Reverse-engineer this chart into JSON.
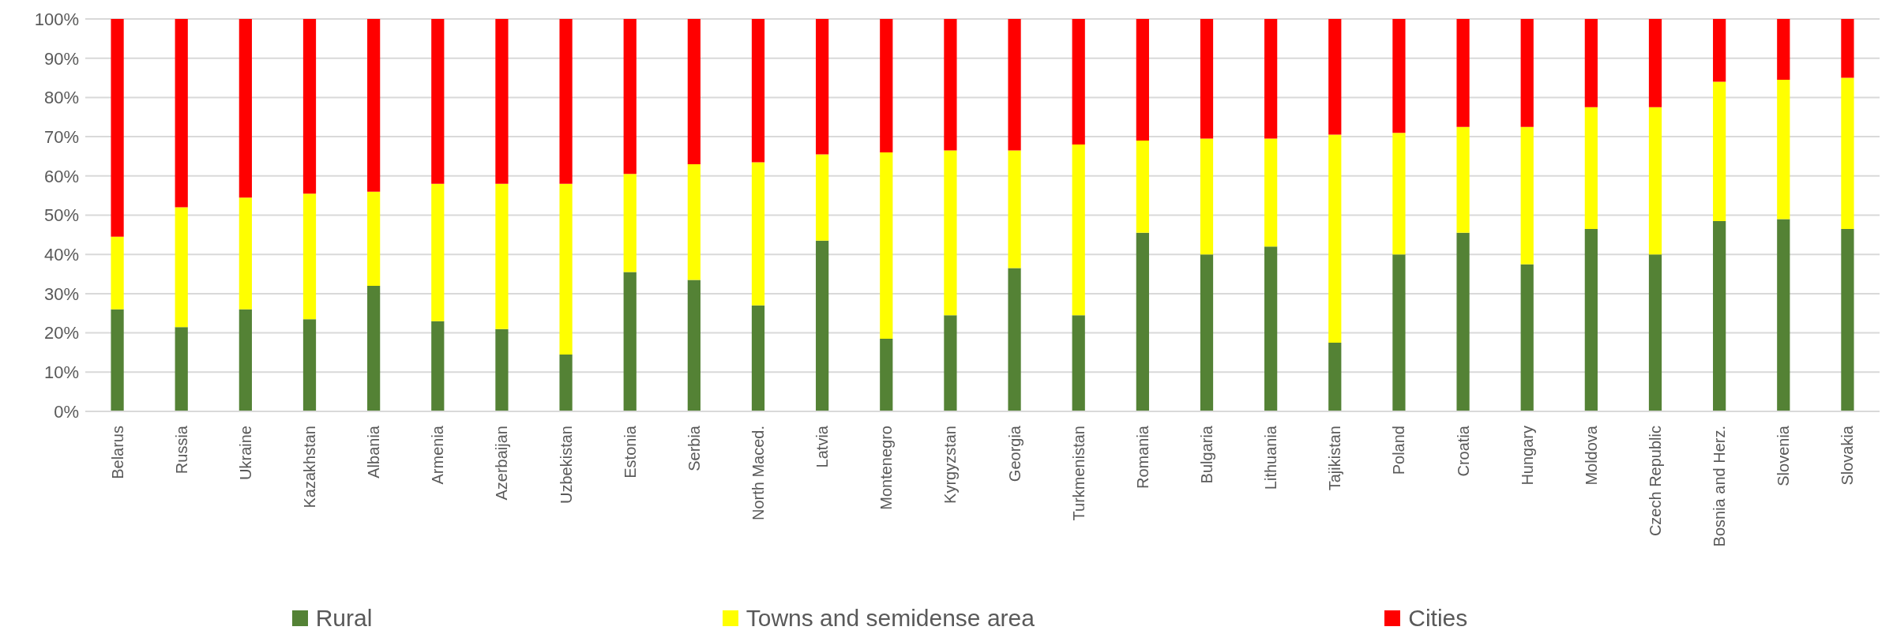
{
  "chart_data": {
    "type": "bar",
    "stacked": true,
    "categories": [
      "Belarus",
      "Russia",
      "Ukraine",
      "Kazakhstan",
      "Albania",
      "Armenia",
      "Azerbaijan",
      "Uzbekistan",
      "Estonia",
      "Serbia",
      "North Maced.",
      "Latvia",
      "Montenegro",
      "Kyrgyzstan",
      "Georgia",
      "Turkmenistan",
      "Romania",
      "Bulgaria",
      "Lithuania",
      "Tajikistan",
      "Poland",
      "Croatia",
      "Hungary",
      "Moldova",
      "Czech Republic",
      "Bosnia and Herz.",
      "Slovenia",
      "Slovakia"
    ],
    "series": [
      {
        "name": "Rural",
        "color": "#548235",
        "values": [
          26,
          21.5,
          26,
          23.5,
          32,
          23,
          21,
          14.5,
          35.5,
          33.5,
          27,
          43.5,
          18.5,
          24.5,
          36.5,
          24.5,
          45.5,
          40,
          42,
          17.5,
          40,
          45.5,
          37.5,
          46.5,
          40,
          48.5,
          49,
          46.5
        ]
      },
      {
        "name": "Towns and semidense area",
        "color": "#ffff00",
        "values": [
          18.5,
          30.5,
          28.5,
          32,
          24,
          35,
          37,
          43.5,
          25,
          29.5,
          36.5,
          22,
          47.5,
          42,
          30,
          43.5,
          23.5,
          29.5,
          27.5,
          53,
          31,
          27,
          35,
          31,
          37.5,
          35.5,
          35.5,
          38.5
        ]
      },
      {
        "name": "Cities",
        "color": "#ff0000",
        "values": [
          55.5,
          48,
          45.5,
          44.5,
          44,
          42,
          42,
          42,
          39.5,
          37,
          36.5,
          34.5,
          34,
          33.5,
          33.5,
          32,
          31,
          30.5,
          30.5,
          29.5,
          29,
          27.5,
          27.5,
          22.5,
          22.5,
          16,
          15.5,
          15
        ]
      }
    ],
    "ylim": [
      0,
      100
    ],
    "yticks": [
      {
        "value": 0,
        "label": "0%"
      },
      {
        "value": 10,
        "label": "10%"
      },
      {
        "value": 20,
        "label": "20%"
      },
      {
        "value": 30,
        "label": "30%"
      },
      {
        "value": 40,
        "label": "40%"
      },
      {
        "value": 50,
        "label": "50%"
      },
      {
        "value": 60,
        "label": "60%"
      },
      {
        "value": 70,
        "label": "70%"
      },
      {
        "value": 80,
        "label": "80%"
      },
      {
        "value": 90,
        "label": "90%"
      },
      {
        "value": 100,
        "label": "100%"
      }
    ],
    "grid": "y",
    "legend": "bottom"
  }
}
